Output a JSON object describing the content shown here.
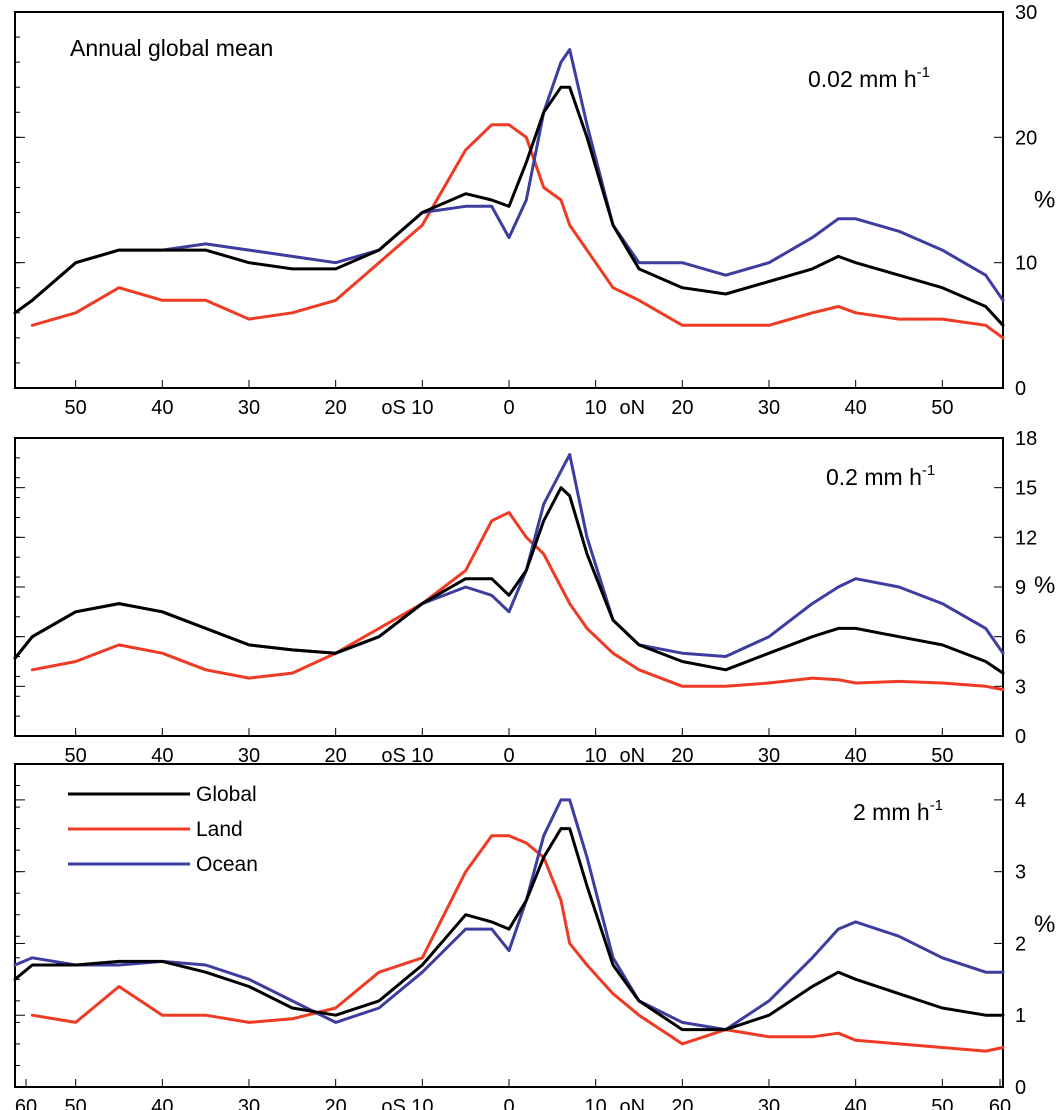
{
  "chart_data": [
    {
      "type": "line",
      "title": "Annual global mean",
      "rate_label": "0.02 mm h",
      "rate_exp": "-1",
      "ylabel": "%",
      "ylim": [
        0,
        30
      ],
      "yticks": [
        0,
        10,
        20,
        30
      ],
      "xlim": [
        -60,
        60
      ],
      "xticks": [
        "50",
        "40",
        "30",
        "20",
        "10",
        "0",
        "10",
        "20",
        "30",
        "40",
        "50"
      ],
      "hemi_labels": [
        "oS",
        "oN"
      ],
      "x": [
        -60,
        -55,
        -50,
        -45,
        -40,
        -35,
        -30,
        -25,
        -20,
        -15,
        -10,
        -5,
        -2,
        0,
        2,
        4,
        6,
        7,
        9,
        12,
        15,
        20,
        25,
        30,
        35,
        38,
        40,
        45,
        50,
        55,
        58
      ],
      "series": [
        {
          "name": "Global",
          "color": "#000000",
          "values": [
            6,
            7,
            10,
            11,
            11,
            11,
            10,
            9.5,
            9.5,
            11,
            14,
            15.5,
            15,
            14.5,
            18,
            22,
            24,
            24,
            20,
            13,
            9.5,
            8,
            7.5,
            8.5,
            9.5,
            10.5,
            10,
            9,
            8,
            6.5,
            5
          ]
        },
        {
          "name": "Land",
          "color": "#ef3a24",
          "values": [
            null,
            5,
            6,
            8,
            7,
            7,
            5.5,
            6,
            7,
            10,
            13,
            19,
            21,
            21,
            20,
            16,
            15,
            13,
            11,
            8,
            7,
            5,
            5,
            5,
            6,
            6.5,
            6,
            5.5,
            5.5,
            5,
            4
          ]
        },
        {
          "name": "Ocean",
          "color": "#3d3d9f",
          "values": [
            6,
            7,
            10,
            11,
            11,
            11.5,
            11,
            10.5,
            10,
            11,
            14,
            14.5,
            14.5,
            12,
            15,
            22,
            26,
            27,
            21,
            13,
            10,
            10,
            9,
            10,
            12,
            13.5,
            13.5,
            12.5,
            11,
            9,
            7
          ]
        }
      ]
    },
    {
      "type": "line",
      "rate_label": "0.2 mm h",
      "rate_exp": "-1",
      "ylabel": "%",
      "ylim": [
        0,
        18
      ],
      "yticks": [
        0,
        3,
        6,
        9,
        12,
        15,
        18
      ],
      "xlim": [
        -60,
        60
      ],
      "xticks": [
        "50",
        "40",
        "30",
        "20",
        "10",
        "0",
        "10",
        "20",
        "30",
        "40",
        "50"
      ],
      "hemi_labels": [
        "oS",
        "oN"
      ],
      "x": [
        -60,
        -55,
        -50,
        -45,
        -40,
        -35,
        -30,
        -25,
        -20,
        -15,
        -10,
        -5,
        -2,
        0,
        2,
        4,
        6,
        7,
        9,
        12,
        15,
        20,
        25,
        30,
        35,
        38,
        40,
        45,
        50,
        55,
        58
      ],
      "series": [
        {
          "name": "Global",
          "color": "#000000",
          "values": [
            4.7,
            6,
            7.5,
            8,
            7.5,
            6.5,
            5.5,
            5.2,
            5,
            6,
            8,
            9.5,
            9.5,
            8.5,
            10,
            13,
            15,
            14.5,
            11,
            7,
            5.5,
            4.5,
            4,
            5,
            6,
            6.5,
            6.5,
            6,
            5.5,
            4.5,
            3.8
          ]
        },
        {
          "name": "Land",
          "color": "#ef3a24",
          "values": [
            null,
            4,
            4.5,
            5.5,
            5,
            4,
            3.5,
            3.8,
            5,
            6.5,
            8,
            10,
            13,
            13.5,
            12,
            11,
            9,
            8,
            6.5,
            5,
            4,
            3,
            3,
            3.2,
            3.5,
            3.4,
            3.2,
            3.3,
            3.2,
            3,
            2.8
          ]
        },
        {
          "name": "Ocean",
          "color": "#3d3d9f",
          "values": [
            4.7,
            6,
            7.5,
            8,
            7.5,
            6.5,
            5.5,
            5.2,
            5,
            6,
            8,
            9,
            8.5,
            7.5,
            10,
            14,
            16,
            17,
            12,
            7,
            5.5,
            5,
            4.8,
            6,
            8,
            9,
            9.5,
            9,
            8,
            6.5,
            5
          ]
        }
      ]
    },
    {
      "type": "line",
      "rate_label": "2 mm h",
      "rate_exp": "-1",
      "ylabel": "%",
      "ylim": [
        0,
        4.5
      ],
      "yticks": [
        0,
        1,
        2,
        3,
        4
      ],
      "xlim": [
        -60,
        60
      ],
      "xticks": [
        "60",
        "50",
        "40",
        "30",
        "20",
        "10",
        "0",
        "10",
        "20",
        "30",
        "40",
        "50",
        "60"
      ],
      "hemi_labels": [
        "oS",
        "oN"
      ],
      "legend": {
        "position": "top-left"
      },
      "x": [
        -60,
        -55,
        -50,
        -45,
        -40,
        -35,
        -30,
        -25,
        -20,
        -15,
        -10,
        -5,
        -2,
        0,
        2,
        4,
        6,
        7,
        9,
        12,
        15,
        20,
        25,
        30,
        35,
        38,
        40,
        45,
        50,
        55,
        58
      ],
      "series": [
        {
          "name": "Global",
          "color": "#000000",
          "values": [
            1.5,
            1.7,
            1.7,
            1.75,
            1.75,
            1.6,
            1.4,
            1.1,
            1,
            1.2,
            1.7,
            2.4,
            2.3,
            2.2,
            2.6,
            3.2,
            3.6,
            3.6,
            2.8,
            1.7,
            1.2,
            0.8,
            0.8,
            1,
            1.4,
            1.6,
            1.5,
            1.3,
            1.1,
            1,
            1
          ]
        },
        {
          "name": "Land",
          "color": "#ef3a24",
          "values": [
            null,
            1,
            0.9,
            1.4,
            1,
            1,
            0.9,
            0.95,
            1.1,
            1.6,
            1.8,
            3,
            3.5,
            3.5,
            3.4,
            3.2,
            2.6,
            2,
            1.7,
            1.3,
            1,
            0.6,
            0.8,
            0.7,
            0.7,
            0.75,
            0.65,
            0.6,
            0.55,
            0.5,
            0.55
          ]
        },
        {
          "name": "Ocean",
          "color": "#3d3d9f",
          "values": [
            1.7,
            1.8,
            1.7,
            1.7,
            1.75,
            1.7,
            1.5,
            1.2,
            0.9,
            1.1,
            1.6,
            2.2,
            2.2,
            1.9,
            2.6,
            3.5,
            4,
            4,
            3.2,
            1.8,
            1.2,
            0.9,
            0.8,
            1.2,
            1.8,
            2.2,
            2.3,
            2.1,
            1.8,
            1.6,
            1.6
          ]
        }
      ]
    }
  ]
}
